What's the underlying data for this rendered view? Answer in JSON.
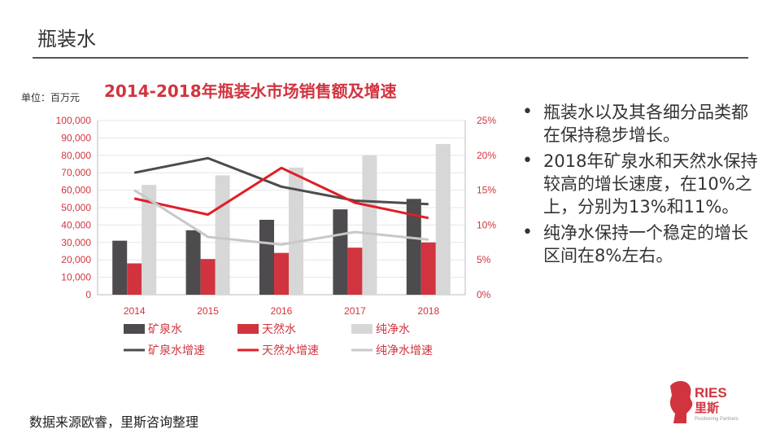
{
  "header": {
    "title": "瓶装水"
  },
  "unit_label": "单位：百万元",
  "bullets": [
    "瓶装水以及其各细分品类都在保持稳步增长。",
    "2018年矿泉水和天然水保持较高的增长速度，在10%之上，分别为13%和11%。",
    "纯净水保持一个稳定的增长区间在8%左右。"
  ],
  "source": "数据来源欧睿，里斯咨询整理",
  "logo": {
    "name": "RIES",
    "cn": "里斯",
    "tagline": "Positioning Partners"
  },
  "chart_data": {
    "type": "bar",
    "title": "2014-2018年瓶装水市场销售额及增速",
    "categories": [
      "2014",
      "2015",
      "2016",
      "2017",
      "2018"
    ],
    "ylim": [
      0,
      100000
    ],
    "yticks": [
      "0",
      "10,000",
      "20,000",
      "30,000",
      "40,000",
      "50,000",
      "60,000",
      "70,000",
      "80,000",
      "90,000",
      "100,000"
    ],
    "y2lim": [
      0,
      25
    ],
    "y2ticks": [
      "0%",
      "5%",
      "10%",
      "15%",
      "20%",
      "25%"
    ],
    "series": [
      {
        "name": "矿泉水",
        "kind": "bar",
        "color": "#4d4b4d",
        "values": [
          31000,
          37000,
          43000,
          49000,
          55000
        ]
      },
      {
        "name": "天然水",
        "kind": "bar",
        "color": "#d1343f",
        "values": [
          18000,
          20500,
          24000,
          27000,
          30000
        ]
      },
      {
        "name": "纯净水",
        "kind": "bar",
        "color": "#d7d7d7",
        "values": [
          63000,
          68500,
          73000,
          80000,
          86500
        ]
      },
      {
        "name": "矿泉水增速",
        "kind": "line",
        "axis": "right",
        "color": "#4d4b4d",
        "values": [
          17.5,
          19.6,
          15.5,
          13.5,
          13
        ]
      },
      {
        "name": "天然水增速",
        "kind": "line",
        "axis": "right",
        "color": "#e01e26",
        "values": [
          13.8,
          11.5,
          18.2,
          13.2,
          11
        ]
      },
      {
        "name": "纯净水增速",
        "kind": "line",
        "axis": "right",
        "color": "#c8c8c8",
        "values": [
          15,
          8.3,
          7.2,
          9,
          7.9
        ]
      }
    ],
    "legend": "bottom"
  }
}
